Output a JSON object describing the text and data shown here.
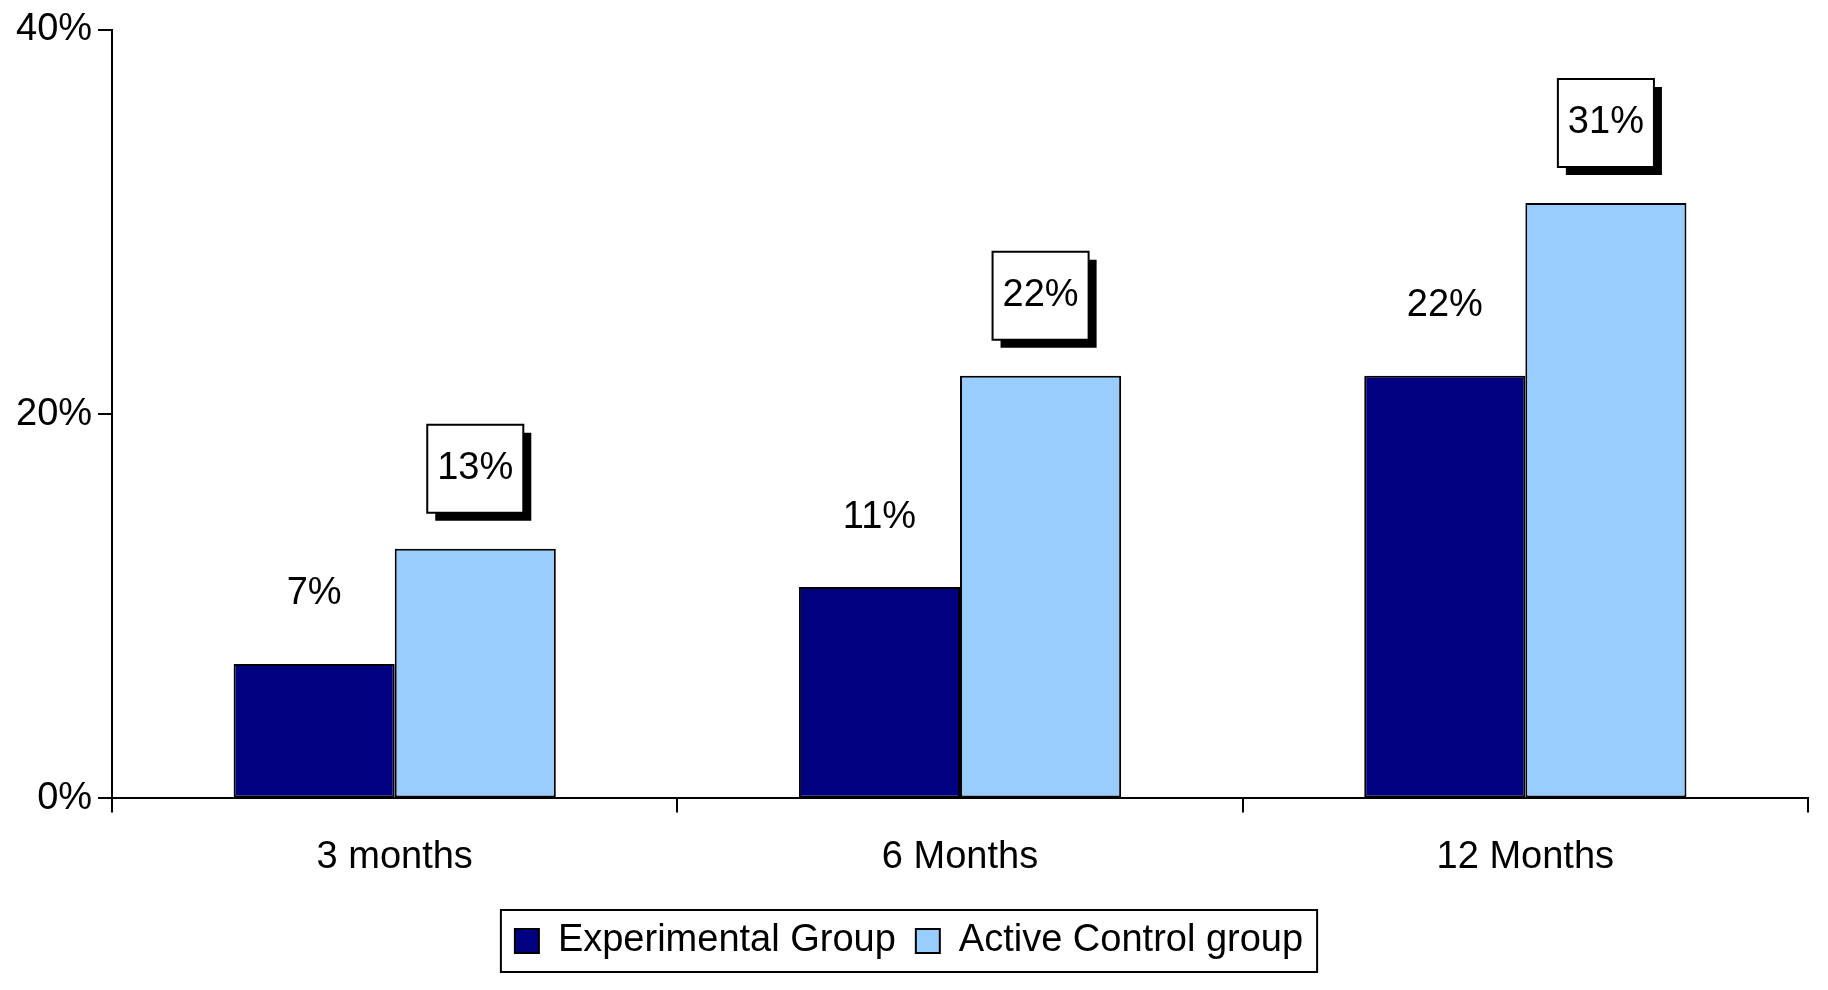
{
  "chart_data": {
    "type": "bar",
    "categories": [
      "3 months",
      "6 Months",
      "12 Months"
    ],
    "series": [
      {
        "name": "Experimental Group",
        "color": "#000080",
        "values": [
          7,
          11,
          22
        ],
        "value_labels": [
          "7%",
          "11%",
          "22%"
        ]
      },
      {
        "name": "Active Control group",
        "color": "#99ccff",
        "values": [
          13,
          22,
          31
        ],
        "value_labels": [
          "13%",
          "22%",
          "31%"
        ]
      }
    ],
    "ylim": [
      0,
      40
    ],
    "yticks": [
      {
        "value": 0,
        "label": "0%"
      },
      {
        "value": 20,
        "label": "20%"
      },
      {
        "value": 40,
        "label": "40%"
      }
    ],
    "grid": false,
    "legend": "bottom"
  }
}
